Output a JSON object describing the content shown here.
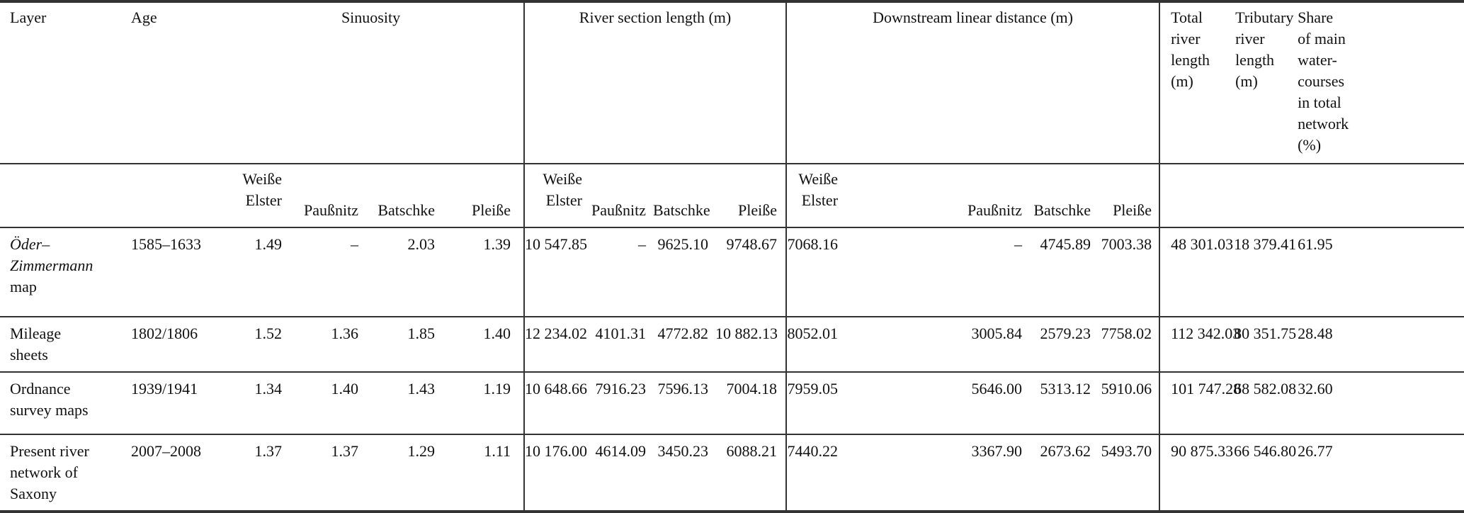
{
  "headers": {
    "layer": "Layer",
    "age": "Age",
    "groups": {
      "sinuosity": "Sinuosity",
      "river_section": "River section length (m)",
      "downstream": "Downstream linear distance (m)"
    },
    "subcolumns": [
      "Weiße\nElster",
      "Paußnitz",
      "Batschke",
      "Pleiße"
    ],
    "total": "Total\nriver\nlength\n(m)",
    "tributary": "Tributary\nriver\nlength\n(m)",
    "share": "Share\nof main\nwater-\ncourses\nin total\nnetwork\n(%)"
  },
  "rows": [
    {
      "layer_em": "Öder–\nZimmermann",
      "layer": "\nmap",
      "age": "1585–1633",
      "sinuosity": [
        "1.49",
        "–",
        "2.03",
        "1.39"
      ],
      "river_section": [
        "10 547.85",
        "–",
        "9625.10",
        "9748.67"
      ],
      "downstream": [
        "7068.16",
        "–",
        "4745.89",
        "7003.38"
      ],
      "total": "48 301.03",
      "tributary": "18 379.41",
      "share": "61.95"
    },
    {
      "layer_em": "",
      "layer": "Mileage\nsheets",
      "age": "1802/1806",
      "sinuosity": [
        "1.52",
        "1.36",
        "1.85",
        "1.40"
      ],
      "river_section": [
        "12 234.02",
        "4101.31",
        "4772.82",
        "10 882.13"
      ],
      "downstream": [
        "8052.01",
        "3005.84",
        "2579.23",
        "7758.02"
      ],
      "total": "112 342.03",
      "tributary": "80 351.75",
      "share": "28.48"
    },
    {
      "layer_em": "",
      "layer": "Ordnance\nsurvey maps",
      "age": "1939/1941",
      "sinuosity": [
        "1.34",
        "1.40",
        "1.43",
        "1.19"
      ],
      "river_section": [
        "10 648.66",
        "7916.23",
        "7596.13",
        "7004.18"
      ],
      "downstream": [
        "7959.05",
        "5646.00",
        "5313.12",
        "5910.06"
      ],
      "total": "101 747.28",
      "tributary": "68 582.08",
      "share": "32.60"
    },
    {
      "layer_em": "",
      "layer": "Present river\nnetwork of\nSaxony",
      "age": "2007–2008",
      "sinuosity": [
        "1.37",
        "1.37",
        "1.29",
        "1.11"
      ],
      "river_section": [
        "10 176.00",
        "4614.09",
        "3450.23",
        "6088.21"
      ],
      "downstream": [
        "7440.22",
        "3367.90",
        "2673.62",
        "5493.70"
      ],
      "total": "90 875.33",
      "tributary": "66 546.80",
      "share": "26.77"
    }
  ]
}
